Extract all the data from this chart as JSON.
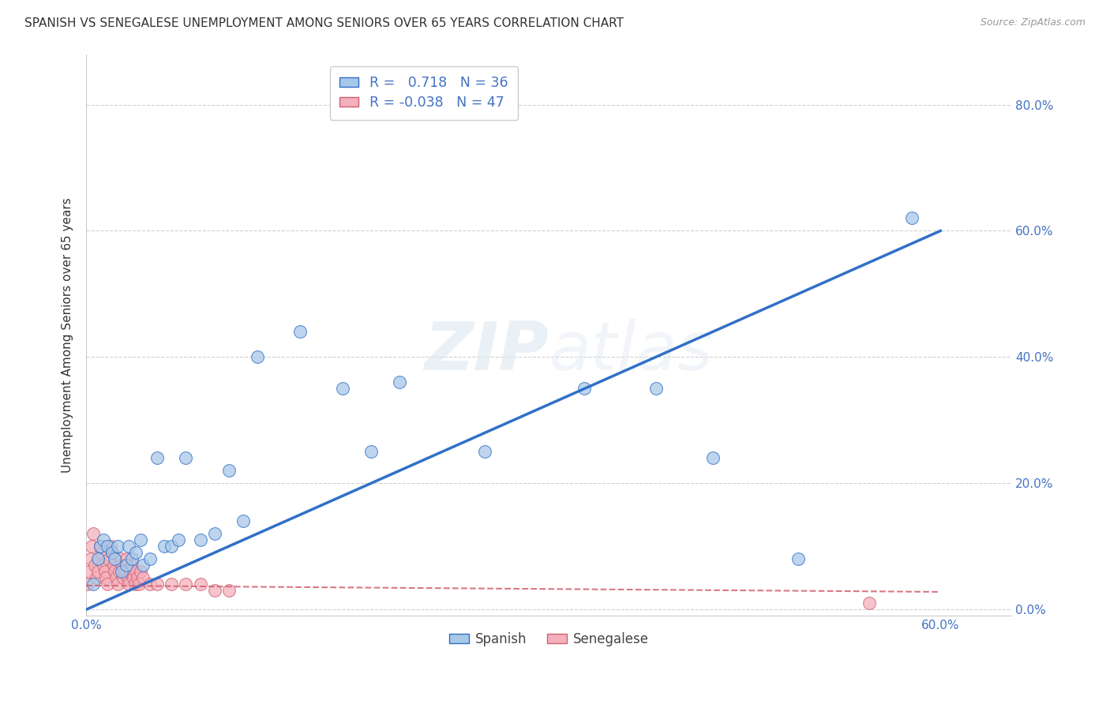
{
  "title": "SPANISH VS SENEGALESE UNEMPLOYMENT AMONG SENIORS OVER 65 YEARS CORRELATION CHART",
  "source": "Source: ZipAtlas.com",
  "ylabel": "Unemployment Among Seniors over 65 years",
  "watermark": "ZIPatlas",
  "spanish_R": 0.718,
  "spanish_N": 36,
  "senegalese_R": -0.038,
  "senegalese_N": 47,
  "xlim": [
    0.0,
    0.65
  ],
  "ylim": [
    -0.01,
    0.88
  ],
  "xticks": [
    0.0,
    0.1,
    0.2,
    0.3,
    0.4,
    0.5,
    0.6
  ],
  "yticks": [
    0.0,
    0.2,
    0.4,
    0.6,
    0.8
  ],
  "ytick_labels_right": [
    "0.0%",
    "20.0%",
    "40.0%",
    "60.0%",
    "80.0%"
  ],
  "xtick_labels": [
    "0.0%",
    "",
    "",
    "",
    "",
    "",
    "60.0%"
  ],
  "spanish_color": "#a8c8e8",
  "senegalese_color": "#f4b0bc",
  "spanish_line_color": "#3070c8",
  "senegalese_line_color": "#d06070",
  "legend_color": "#4472c4",
  "spanish_points_x": [
    0.005,
    0.008,
    0.01,
    0.012,
    0.015,
    0.018,
    0.02,
    0.022,
    0.025,
    0.028,
    0.03,
    0.032,
    0.035,
    0.038,
    0.04,
    0.045,
    0.05,
    0.055,
    0.06,
    0.065,
    0.07,
    0.08,
    0.09,
    0.1,
    0.11,
    0.12,
    0.15,
    0.18,
    0.2,
    0.22,
    0.28,
    0.35,
    0.4,
    0.44,
    0.5,
    0.58
  ],
  "spanish_points_y": [
    0.04,
    0.08,
    0.1,
    0.11,
    0.1,
    0.09,
    0.08,
    0.1,
    0.06,
    0.07,
    0.1,
    0.08,
    0.09,
    0.11,
    0.07,
    0.08,
    0.24,
    0.1,
    0.1,
    0.11,
    0.24,
    0.11,
    0.12,
    0.22,
    0.14,
    0.4,
    0.44,
    0.35,
    0.25,
    0.36,
    0.25,
    0.35,
    0.35,
    0.24,
    0.08,
    0.62
  ],
  "senegalese_points_x": [
    0.001,
    0.002,
    0.003,
    0.004,
    0.005,
    0.006,
    0.007,
    0.008,
    0.009,
    0.01,
    0.011,
    0.012,
    0.013,
    0.014,
    0.015,
    0.016,
    0.017,
    0.018,
    0.019,
    0.02,
    0.021,
    0.022,
    0.023,
    0.024,
    0.025,
    0.026,
    0.027,
    0.028,
    0.029,
    0.03,
    0.031,
    0.032,
    0.033,
    0.034,
    0.035,
    0.036,
    0.037,
    0.038,
    0.04,
    0.045,
    0.05,
    0.06,
    0.07,
    0.08,
    0.09,
    0.1,
    0.55
  ],
  "senegalese_points_y": [
    0.04,
    0.06,
    0.08,
    0.1,
    0.12,
    0.07,
    0.05,
    0.06,
    0.08,
    0.1,
    0.09,
    0.07,
    0.06,
    0.05,
    0.04,
    0.08,
    0.1,
    0.09,
    0.07,
    0.06,
    0.05,
    0.04,
    0.06,
    0.08,
    0.07,
    0.05,
    0.06,
    0.08,
    0.05,
    0.04,
    0.06,
    0.07,
    0.05,
    0.04,
    0.06,
    0.05,
    0.04,
    0.06,
    0.05,
    0.04,
    0.04,
    0.04,
    0.04,
    0.04,
    0.03,
    0.03,
    0.01
  ],
  "spanish_line_x": [
    0.0,
    0.6
  ],
  "spanish_line_y": [
    0.0,
    0.6
  ],
  "senegalese_line_x": [
    0.0,
    0.6
  ],
  "senegalese_line_y": [
    0.038,
    0.028
  ],
  "background_color": "#ffffff",
  "grid_color": "#cccccc"
}
